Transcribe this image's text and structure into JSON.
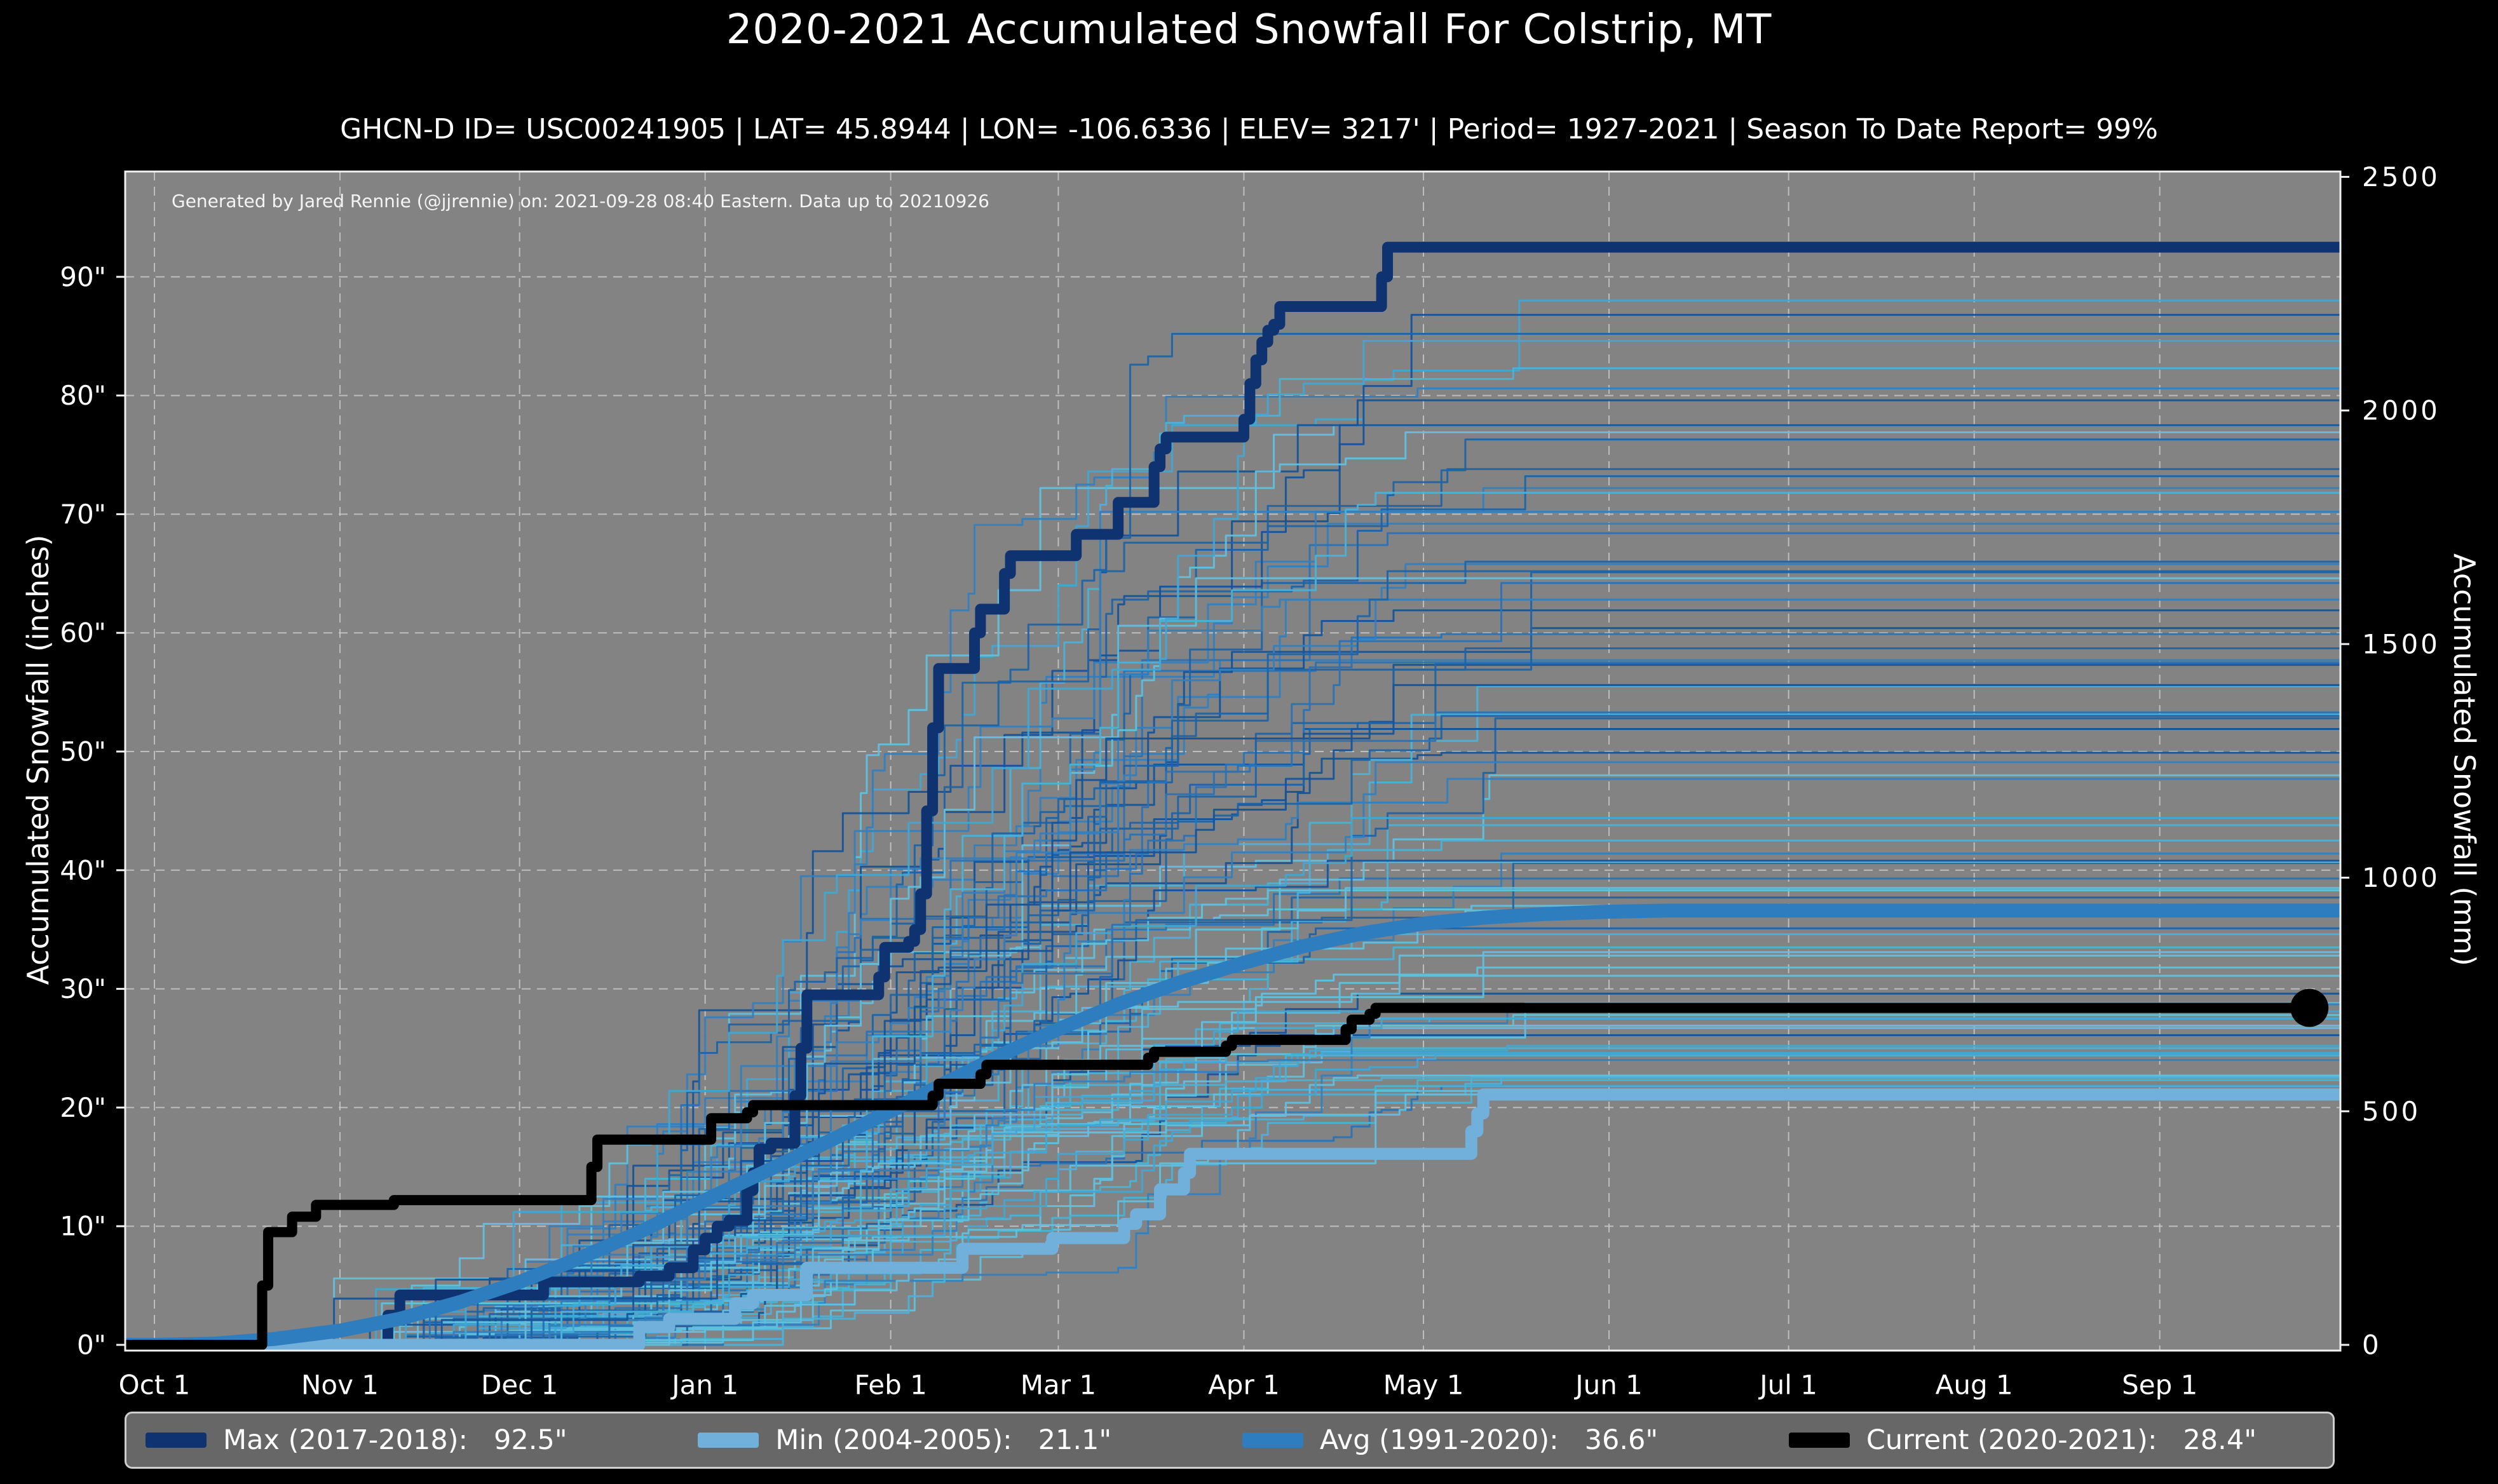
{
  "header": {
    "title": "2020-2021 Accumulated Snowfall For Colstrip, MT",
    "subtitle": "GHCN-D ID= USC00241905 | LAT= 45.8944 | LON= -106.6336 | ELEV= 3217' | Period= 1927-2021 | Season To Date Report= 99%"
  },
  "annotation": "Generated by Jared Rennie (@jjrennie) on: 2021-09-28 08:40 Eastern. Data up to 20210926",
  "axes": {
    "left_label": "Accumulated Snowfall (inches)",
    "right_label": "Accumulated Snowfall (mm)",
    "x_tick_labels": [
      "Oct 1",
      "Nov 1",
      "Dec 1",
      "Jan 1",
      "Feb 1",
      "Mar 1",
      "Apr 1",
      "May 1",
      "Jun 1",
      "Jul 1",
      "Aug 1",
      "Sep 1"
    ],
    "x_tick_days": [
      0,
      31,
      61,
      92,
      123,
      151,
      182,
      212,
      243,
      273,
      304,
      335
    ],
    "left_tick_labels": [
      "0\"",
      "10\"",
      "20\"",
      "30\"",
      "40\"",
      "50\"",
      "60\"",
      "70\"",
      "80\"",
      "90\""
    ],
    "left_tick_inches": [
      0,
      10,
      20,
      30,
      40,
      50,
      60,
      70,
      80,
      90
    ],
    "right_tick_labels": [
      "0",
      "500",
      "1000",
      "1500",
      "2000",
      "2500"
    ],
    "right_tick_mm": [
      0,
      500,
      1000,
      1500,
      2000,
      2500
    ],
    "grid": "dashed"
  },
  "colors": {
    "page_bg": "#000000",
    "plot_bg": "#838383",
    "gridline": "#c9c9c9",
    "spine": "#f0f0f0",
    "max": "#0e3370",
    "min": "#72b0dc",
    "avg": "#2e7dbf",
    "current": "#000000",
    "legend_bg": "#676767",
    "legend_border": "#cfcfcf"
  },
  "legend": [
    {
      "id": "max",
      "text": "Max (2017-2018):   92.5\"",
      "color": "#0e3370"
    },
    {
      "id": "min",
      "text": "Min (2004-2005):   21.1\"",
      "color": "#72b0dc"
    },
    {
      "id": "avg",
      "text": "Avg (1991-2020):   36.6\"",
      "color": "#2e7dbf"
    },
    {
      "id": "current",
      "text": "Current (2020-2021):   28.4\"",
      "color": "#000000"
    }
  ],
  "chart_data": {
    "type": "line",
    "x_axis": {
      "unit": "day-of-season",
      "start": "Oct 1",
      "end": "Sep 30",
      "range_days": [
        0,
        365
      ]
    },
    "ylabel": "Accumulated Snowfall (inches)",
    "ylim_inches": [
      0,
      98.5
    ],
    "y2label": "Accumulated Snowfall (mm)",
    "y2lim_mm": [
      0,
      2501
    ],
    "legend_position": "bottom",
    "series": [
      {
        "id": "max",
        "name": "Max (2017-2018)",
        "total": 92.5,
        "style": "step",
        "color": "#0e3370",
        "width": 17,
        "points": [
          [
            0,
            0
          ],
          [
            38,
            0
          ],
          [
            39,
            2.5
          ],
          [
            41,
            4.2
          ],
          [
            64,
            4.2
          ],
          [
            65,
            5.3
          ],
          [
            80,
            5.3
          ],
          [
            81,
            5.8
          ],
          [
            85,
            5.8
          ],
          [
            86,
            6.5
          ],
          [
            89,
            6.5
          ],
          [
            90,
            8
          ],
          [
            92,
            9
          ],
          [
            94,
            10
          ],
          [
            96,
            10.5
          ],
          [
            98,
            10.5
          ],
          [
            99,
            13
          ],
          [
            100,
            14.5
          ],
          [
            101,
            16.5
          ],
          [
            103,
            17
          ],
          [
            106,
            17
          ],
          [
            107,
            21
          ],
          [
            108,
            25
          ],
          [
            109,
            29.5
          ],
          [
            120,
            29.5
          ],
          [
            121,
            31
          ],
          [
            122,
            33.5
          ],
          [
            126,
            34
          ],
          [
            127,
            35
          ],
          [
            128,
            38
          ],
          [
            129,
            45
          ],
          [
            130,
            52
          ],
          [
            131,
            57
          ],
          [
            136,
            57
          ],
          [
            137,
            60
          ],
          [
            138,
            62
          ],
          [
            141,
            62
          ],
          [
            142,
            65
          ],
          [
            143,
            66.5
          ],
          [
            153,
            66.5
          ],
          [
            154,
            68.3
          ],
          [
            160,
            68.3
          ],
          [
            161,
            71
          ],
          [
            166,
            71
          ],
          [
            167,
            74
          ],
          [
            168,
            75.5
          ],
          [
            169,
            76.5
          ],
          [
            181,
            76.5
          ],
          [
            182,
            78
          ],
          [
            183,
            81
          ],
          [
            184,
            83
          ],
          [
            185,
            84.5
          ],
          [
            186,
            85.5
          ],
          [
            187,
            86
          ],
          [
            188,
            87.5
          ],
          [
            204,
            87.5
          ],
          [
            205,
            90
          ],
          [
            206,
            92.5
          ],
          [
            365,
            92.5
          ]
        ]
      },
      {
        "id": "min",
        "name": "Min (2004-2005)",
        "total": 21.1,
        "style": "step",
        "color": "#72b0dc",
        "width": 19,
        "points": [
          [
            0,
            0
          ],
          [
            80,
            0
          ],
          [
            81,
            1.5
          ],
          [
            85,
            1.5
          ],
          [
            86,
            2.2
          ],
          [
            96,
            2.2
          ],
          [
            97,
            3.5
          ],
          [
            99,
            3.5
          ],
          [
            100,
            4.2
          ],
          [
            108,
            4.2
          ],
          [
            109,
            6.5
          ],
          [
            134,
            6.5
          ],
          [
            135,
            8.1
          ],
          [
            149,
            8.1
          ],
          [
            150,
            9
          ],
          [
            161,
            9
          ],
          [
            162,
            10.2
          ],
          [
            164,
            11
          ],
          [
            167,
            11
          ],
          [
            168,
            13.1
          ],
          [
            171,
            13.1
          ],
          [
            172,
            14.5
          ],
          [
            173,
            16.1
          ],
          [
            219,
            16.1
          ],
          [
            220,
            18
          ],
          [
            221,
            19.5
          ],
          [
            222,
            21.1
          ],
          [
            365,
            21.1
          ]
        ]
      },
      {
        "id": "avg",
        "name": "Avg (1991-2020)",
        "total": 36.6,
        "style": "smooth",
        "color": "#2e7dbf",
        "width": 22,
        "points": [
          [
            0,
            0
          ],
          [
            10,
            0.1
          ],
          [
            20,
            0.5
          ],
          [
            31,
            1.2
          ],
          [
            41,
            2.2
          ],
          [
            51,
            3.6
          ],
          [
            61,
            5.3
          ],
          [
            71,
            7.3
          ],
          [
            81,
            9.5
          ],
          [
            92,
            12.2
          ],
          [
            102,
            14.6
          ],
          [
            112,
            17
          ],
          [
            123,
            19.7
          ],
          [
            133,
            22.3
          ],
          [
            143,
            24.8
          ],
          [
            151,
            26.6
          ],
          [
            161,
            28.7
          ],
          [
            171,
            30.5
          ],
          [
            182,
            32.2
          ],
          [
            192,
            33.6
          ],
          [
            202,
            34.7
          ],
          [
            212,
            35.5
          ],
          [
            222,
            36
          ],
          [
            232,
            36.3
          ],
          [
            243,
            36.5
          ],
          [
            253,
            36.6
          ],
          [
            365,
            36.6
          ]
        ]
      },
      {
        "id": "current",
        "name": "Current (2020-2021)",
        "total": 28.4,
        "style": "step",
        "color": "#000000",
        "width": 16,
        "end_marker": {
          "day": 360,
          "value": 28.4,
          "radius": 30
        },
        "points": [
          [
            0,
            0
          ],
          [
            17,
            0
          ],
          [
            18,
            5
          ],
          [
            19,
            9.5
          ],
          [
            22,
            9.5
          ],
          [
            23,
            10.8
          ],
          [
            26,
            10.8
          ],
          [
            27,
            11.8
          ],
          [
            39,
            11.8
          ],
          [
            40,
            12.2
          ],
          [
            72,
            12.2
          ],
          [
            73,
            15
          ],
          [
            74,
            17.3
          ],
          [
            92,
            17.3
          ],
          [
            93,
            19.1
          ],
          [
            98,
            19.1
          ],
          [
            99,
            19.6
          ],
          [
            100,
            20.2
          ],
          [
            129,
            20.2
          ],
          [
            130,
            21
          ],
          [
            131,
            22
          ],
          [
            137,
            22
          ],
          [
            138,
            22.8
          ],
          [
            139,
            23.6
          ],
          [
            165,
            23.6
          ],
          [
            166,
            24.2
          ],
          [
            167,
            24.7
          ],
          [
            178,
            24.7
          ],
          [
            179,
            25.2
          ],
          [
            180,
            25.7
          ],
          [
            198,
            25.7
          ],
          [
            199,
            26.6
          ],
          [
            200,
            27.4
          ],
          [
            202,
            27.4
          ],
          [
            203,
            27.9
          ],
          [
            204,
            28.4
          ],
          [
            361,
            28.4
          ]
        ]
      }
    ],
    "background_series": {
      "description": "One thin step line per season 1927-2021 (all historical years), shades of blue/cyan",
      "count": 92,
      "seed": 20212021,
      "total_range_inches": [
        21,
        88
      ],
      "snow_window_days": [
        30,
        235
      ],
      "dark_colors": [
        "#1c64a8",
        "#2a72b5",
        "#15539a",
        "#3380bf"
      ],
      "light_colors": [
        "#49b2d8",
        "#5fc0de",
        "#3fa8d4"
      ]
    }
  }
}
